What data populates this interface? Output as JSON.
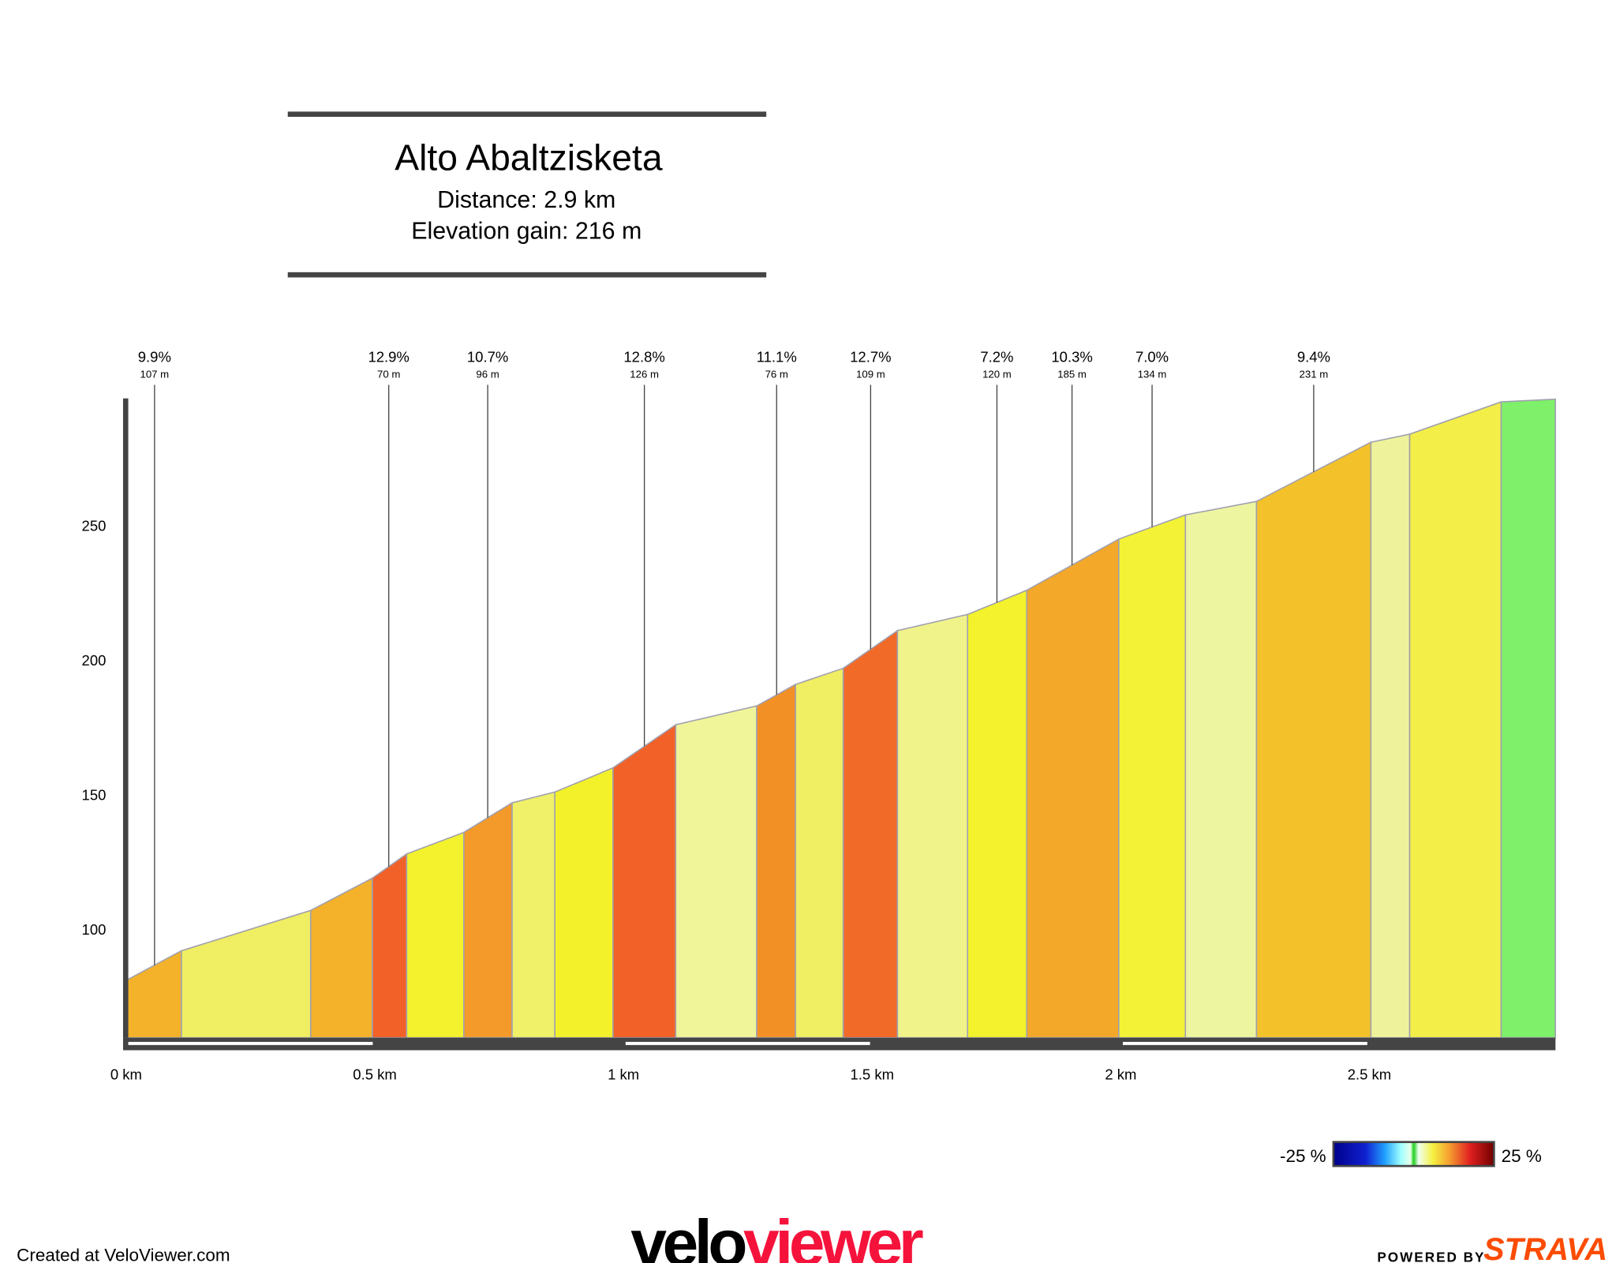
{
  "header": {
    "title": "Alto Abaltzisketa",
    "distance": "Distance: 2.9 km",
    "elevation_gain": "Elevation gain: 216 m"
  },
  "chart_data": {
    "type": "area",
    "title": "Alto Abaltzisketa",
    "xlabel": "",
    "ylabel": "",
    "x_unit": "km",
    "xlim": [
      0,
      2.875
    ],
    "ylim": [
      60,
      300
    ],
    "x_ticks": [
      "0 km",
      "0.5 km",
      "1 km",
      "1.5 km",
      "2 km",
      "2.5 km"
    ],
    "x_tick_values": [
      0,
      0.5,
      1,
      1.5,
      2,
      2.5
    ],
    "y_ticks": [
      100,
      150,
      200,
      250
    ],
    "grid": false,
    "profile_km": [
      0,
      0.111,
      0.371,
      0.495,
      0.564,
      0.679,
      0.776,
      0.862,
      0.979,
      1.105,
      1.268,
      1.346,
      1.442,
      1.551,
      1.692,
      1.811,
      1.996,
      2.13,
      2.273,
      2.503,
      2.581,
      2.765,
      2.874
    ],
    "profile_elevation_m": [
      81,
      92,
      107,
      119,
      128,
      136,
      147,
      151,
      160,
      176,
      183,
      191,
      197,
      211,
      217,
      226,
      245,
      254,
      259,
      281,
      284,
      296,
      297
    ],
    "segment_colors": [
      "#f3b22a",
      "#f0ee62",
      "#f3b22a",
      "#f26128",
      "#f3f22c",
      "#f39a2a",
      "#f0f069",
      "#f3f22a",
      "#f26128",
      "#f0f59a",
      "#f39025",
      "#f0ee62",
      "#f26a28",
      "#f0f38a",
      "#f3f22c",
      "#f3a82a",
      "#f3f236",
      "#eef5a0",
      "#f3c22a",
      "#eef29a",
      "#f3ee48",
      "#7ef06a"
    ],
    "annotations": [
      {
        "gradient": "9.9%",
        "length": "107 m",
        "km": 0.057
      },
      {
        "gradient": "12.9%",
        "length": "70 m",
        "km": 0.528
      },
      {
        "gradient": "10.7%",
        "length": "96 m",
        "km": 0.727
      },
      {
        "gradient": "12.8%",
        "length": "126 m",
        "km": 1.042
      },
      {
        "gradient": "11.1%",
        "length": "76 m",
        "km": 1.308
      },
      {
        "gradient": "12.7%",
        "length": "109 m",
        "km": 1.497
      },
      {
        "gradient": "7.2%",
        "length": "120 m",
        "km": 1.751
      },
      {
        "gradient": "10.3%",
        "length": "185 m",
        "km": 1.902
      },
      {
        "gradient": "7.0%",
        "length": "134 m",
        "km": 2.063
      },
      {
        "gradient": "9.4%",
        "length": "231 m",
        "km": 2.388
      }
    ]
  },
  "legend": {
    "min_label": "-25 %",
    "max_label": "25 %"
  },
  "footer": {
    "created": "Created at VeloViewer.com",
    "logo_velo": "velo",
    "logo_viewer": "viewer",
    "powered_by": "POWERED BY",
    "strava": "STRAVA"
  },
  "colors": {
    "axis": "#444444",
    "outline": "#a0a0b0",
    "velo_red": "#f5133c",
    "strava_orange": "#fc4c02"
  }
}
